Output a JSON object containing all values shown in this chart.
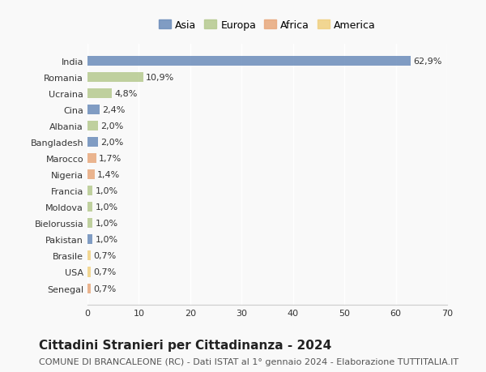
{
  "countries": [
    "India",
    "Romania",
    "Ucraina",
    "Cina",
    "Albania",
    "Bangladesh",
    "Marocco",
    "Nigeria",
    "Francia",
    "Moldova",
    "Bielorussia",
    "Pakistan",
    "Brasile",
    "USA",
    "Senegal"
  ],
  "values": [
    62.9,
    10.9,
    4.8,
    2.4,
    2.0,
    2.0,
    1.7,
    1.4,
    1.0,
    1.0,
    1.0,
    1.0,
    0.7,
    0.7,
    0.7
  ],
  "labels": [
    "62,9%",
    "10,9%",
    "4,8%",
    "2,4%",
    "2,0%",
    "2,0%",
    "1,7%",
    "1,4%",
    "1,0%",
    "1,0%",
    "1,0%",
    "1,0%",
    "0,7%",
    "0,7%",
    "0,7%"
  ],
  "continents": [
    "Asia",
    "Europa",
    "Europa",
    "Asia",
    "Europa",
    "Asia",
    "Africa",
    "Africa",
    "Europa",
    "Europa",
    "Europa",
    "Asia",
    "America",
    "America",
    "Africa"
  ],
  "continent_colors": {
    "Asia": "#6b8cba",
    "Europa": "#b5c98e",
    "Africa": "#e8a87c",
    "America": "#f0d080"
  },
  "legend_order": [
    "Asia",
    "Europa",
    "Africa",
    "America"
  ],
  "title": "Cittadini Stranieri per Cittadinanza - 2024",
  "subtitle": "COMUNE DI BRANCALEONE (RC) - Dati ISTAT al 1° gennaio 2024 - Elaborazione TUTTITALIA.IT",
  "xlim": [
    0,
    70
  ],
  "xticks": [
    0,
    10,
    20,
    30,
    40,
    50,
    60,
    70
  ],
  "bg_color": "#f9f9f9",
  "grid_color": "#ffffff",
  "title_fontsize": 11,
  "subtitle_fontsize": 8,
  "label_fontsize": 8,
  "tick_fontsize": 8,
  "legend_fontsize": 9
}
